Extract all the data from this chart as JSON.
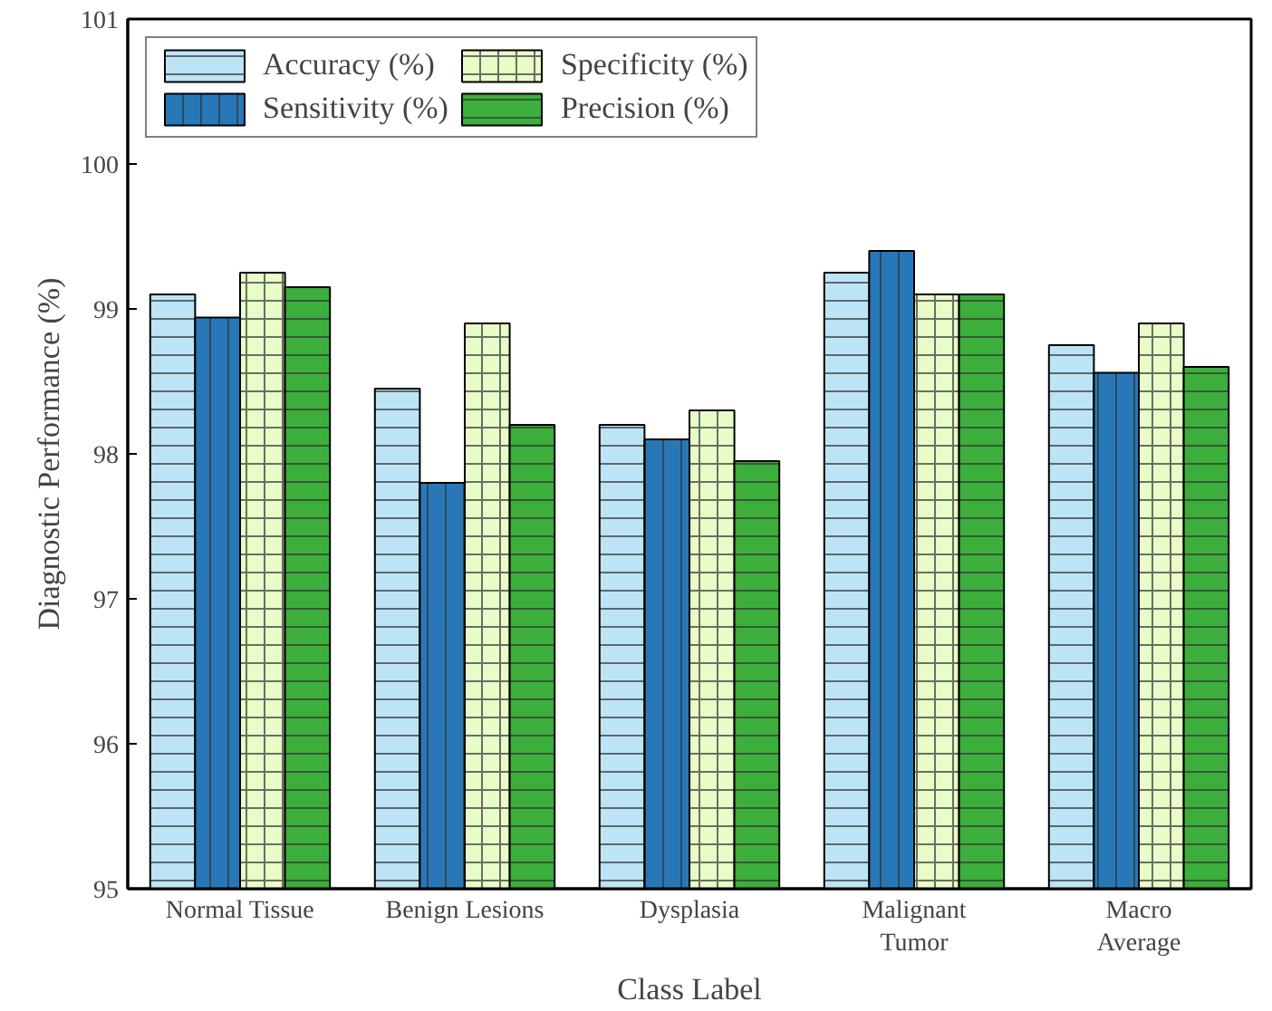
{
  "chart_data": {
    "type": "bar",
    "xlabel": "Class Label",
    "ylabel": "Diagnostic Performance (%)",
    "categories": [
      "Normal Tissue",
      "Benign Lesions",
      "Dysplasia",
      "Malignant\nTumor",
      "Macro\nAverage"
    ],
    "series": [
      {
        "name": "Accuracy (%)",
        "color": "#bde4f4",
        "values": [
          99.1,
          98.45,
          98.2,
          99.25,
          98.75
        ]
      },
      {
        "name": "Sensitivity (%)",
        "color": "#2878b8",
        "values": [
          98.94,
          97.8,
          98.1,
          99.4,
          98.56
        ]
      },
      {
        "name": "Specificity (%)",
        "color": "#e8fcc8",
        "values": [
          99.25,
          98.9,
          98.3,
          99.1,
          98.9
        ]
      },
      {
        "name": "Precision (%)",
        "color": "#3cae3c",
        "values": [
          99.15,
          98.2,
          97.95,
          99.1,
          98.6
        ]
      }
    ],
    "ylim": [
      95,
      101
    ],
    "yticks": [
      95,
      96,
      97,
      98,
      99,
      100,
      101
    ],
    "grid": false,
    "legend": "top left"
  }
}
